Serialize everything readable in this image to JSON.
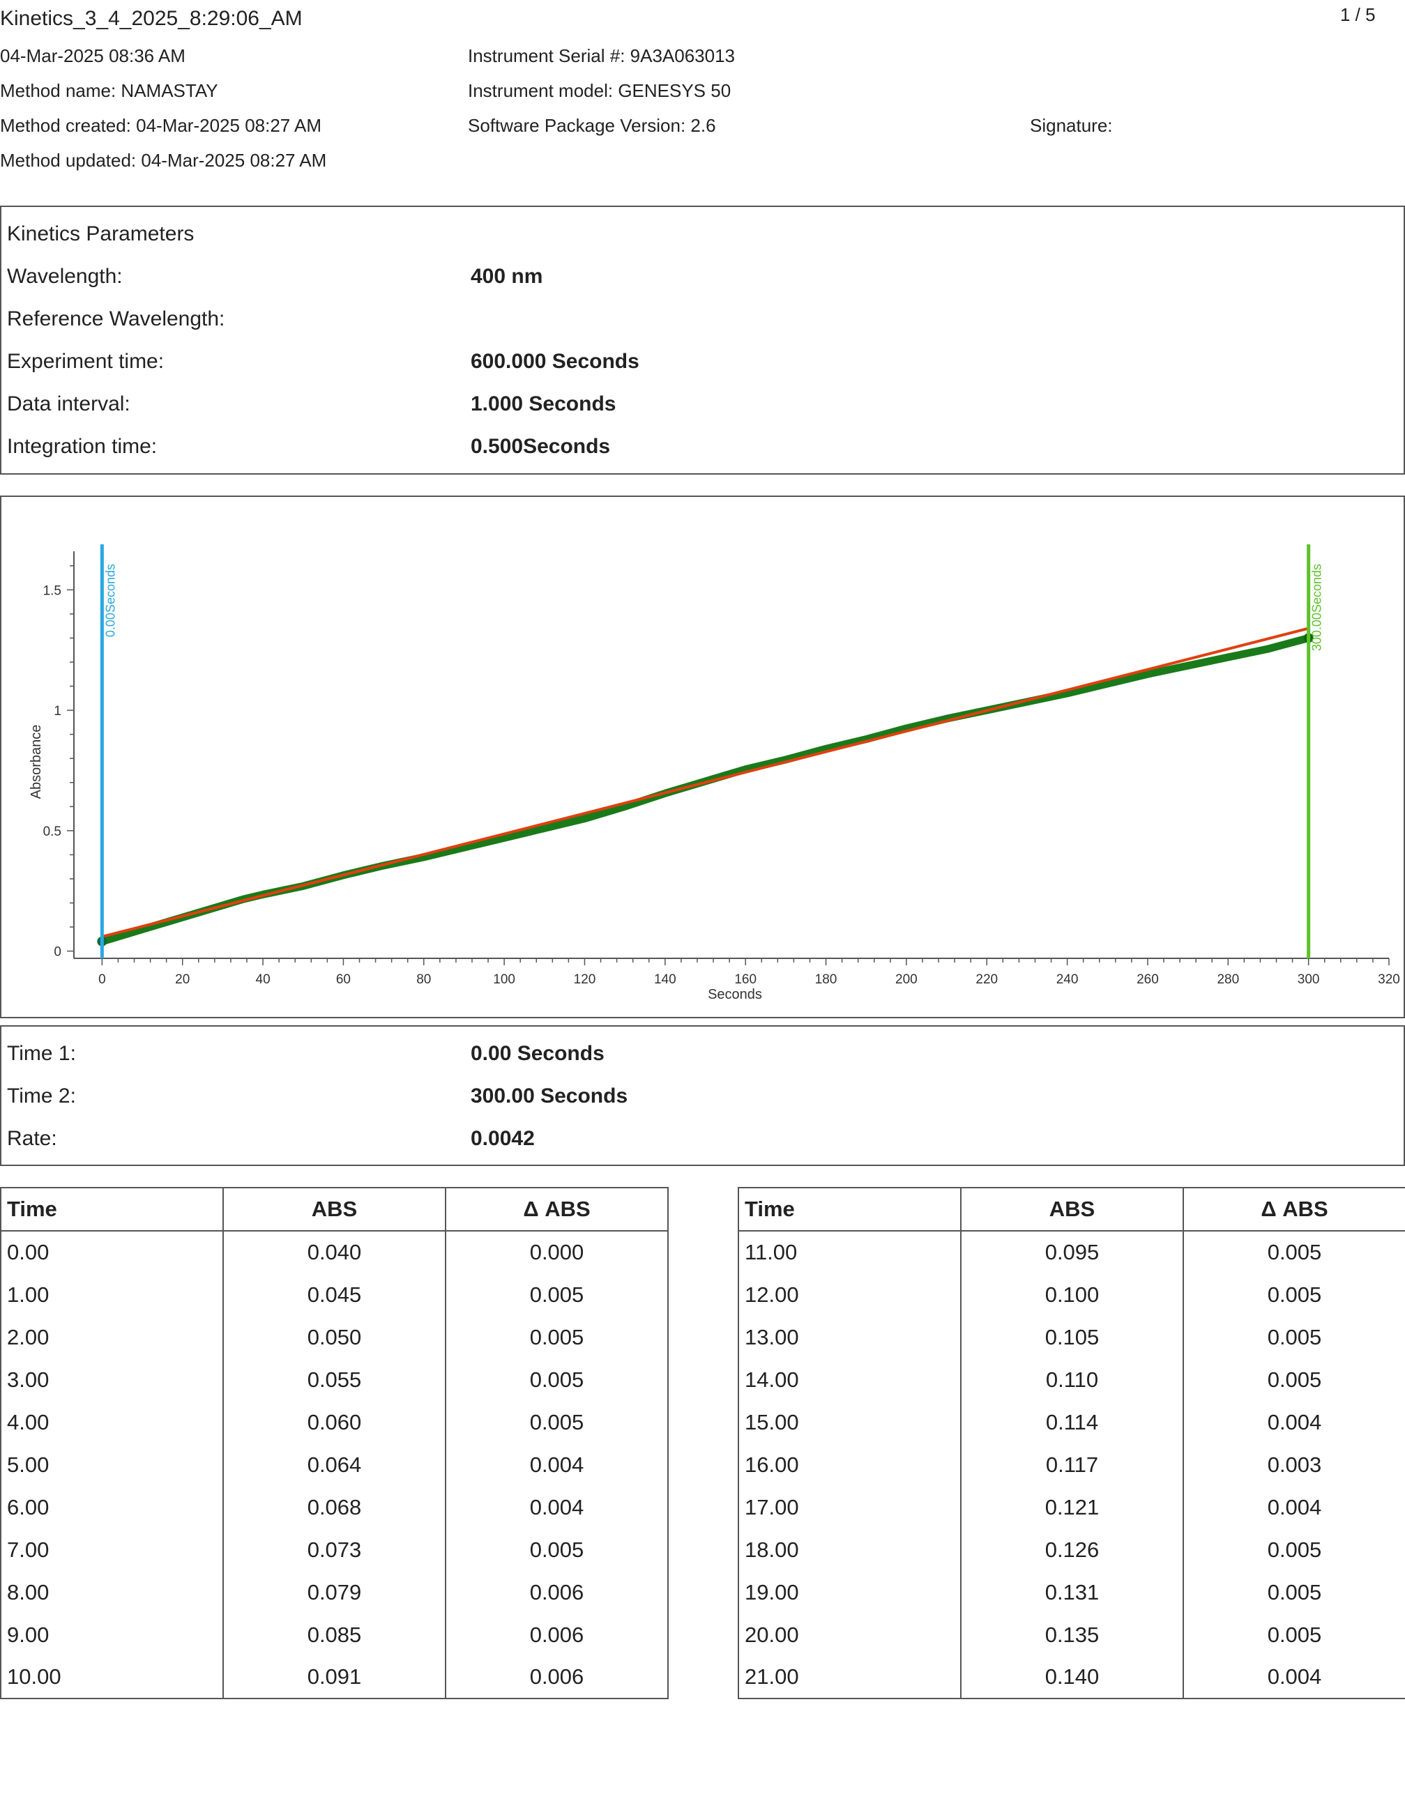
{
  "header": {
    "file_title": "Kinetics_3_4_2025_8:29:06_AM",
    "page_number": "1 / 5",
    "datetime": "04-Mar-2025 08:36 AM",
    "method_name": "Method name: NAMASTAY",
    "method_created": "Method created: 04-Mar-2025 08:27 AM",
    "method_updated": "Method updated: 04-Mar-2025 08:27 AM",
    "instrument_serial": "Instrument Serial #: 9A3A063013",
    "instrument_model": "Instrument model: GENESYS 50",
    "software_version": "Software Package Version: 2.6",
    "signature": "Signature:"
  },
  "kinetics": {
    "heading": "Kinetics Parameters",
    "rows": [
      {
        "label": "Wavelength:",
        "value": "400 nm"
      },
      {
        "label": "Reference Wavelength:",
        "value": ""
      },
      {
        "label": "Experiment time:",
        "value": "600.000 Seconds"
      },
      {
        "label": "Data interval:",
        "value": "1.000 Seconds"
      },
      {
        "label": "Integration time:",
        "value": "0.500Seconds"
      }
    ]
  },
  "results": {
    "rows": [
      {
        "label": "Time 1:",
        "value": "0.00 Seconds"
      },
      {
        "label": "Time 2:",
        "value": "300.00 Seconds"
      },
      {
        "label": "Rate:",
        "value": "0.0042"
      }
    ]
  },
  "chart_data": {
    "type": "line",
    "xlabel": "Seconds",
    "ylabel": "Absorbance",
    "xlim": [
      -7,
      320
    ],
    "ylim": [
      -0.03,
      1.66
    ],
    "x_ticks": [
      0,
      20,
      40,
      60,
      80,
      100,
      120,
      140,
      160,
      180,
      200,
      220,
      240,
      260,
      280,
      300,
      320
    ],
    "y_ticks": [
      0,
      0.5,
      1,
      1.5
    ],
    "grid": false,
    "series": [
      {
        "color": "#1a7a1a",
        "x": [
          0,
          10,
          20,
          30,
          35,
          40,
          50,
          60,
          70,
          80,
          90,
          100,
          110,
          120,
          130,
          140,
          150,
          160,
          170,
          180,
          190,
          200,
          210,
          220,
          230,
          240,
          250,
          260,
          270,
          280,
          290,
          300
        ],
        "y": [
          0.04,
          0.09,
          0.14,
          0.19,
          0.215,
          0.235,
          0.27,
          0.315,
          0.355,
          0.39,
          0.43,
          0.47,
          0.51,
          0.55,
          0.6,
          0.655,
          0.705,
          0.755,
          0.795,
          0.84,
          0.88,
          0.925,
          0.965,
          1.0,
          1.035,
          1.07,
          1.11,
          1.15,
          1.185,
          1.22,
          1.255,
          1.3
        ]
      },
      {
        "color": "#e04010",
        "x": [
          0,
          300
        ],
        "y": [
          0.06,
          1.34
        ]
      }
    ],
    "markers": [
      {
        "x": 0,
        "label": "0.00Seconds",
        "color": "#2aa8e0"
      },
      {
        "x": 300,
        "label": "300.00Seconds",
        "color": "#5cc22a"
      }
    ]
  },
  "tables": [
    {
      "headers": [
        "Time",
        "ABS",
        "Δ ABS"
      ],
      "rows": [
        [
          "0.00",
          "0.040",
          "0.000"
        ],
        [
          "1.00",
          "0.045",
          "0.005"
        ],
        [
          "2.00",
          "0.050",
          "0.005"
        ],
        [
          "3.00",
          "0.055",
          "0.005"
        ],
        [
          "4.00",
          "0.060",
          "0.005"
        ],
        [
          "5.00",
          "0.064",
          "0.004"
        ],
        [
          "6.00",
          "0.068",
          "0.004"
        ],
        [
          "7.00",
          "0.073",
          "0.005"
        ],
        [
          "8.00",
          "0.079",
          "0.006"
        ],
        [
          "9.00",
          "0.085",
          "0.006"
        ],
        [
          "10.00",
          "0.091",
          "0.006"
        ]
      ]
    },
    {
      "headers": [
        "Time",
        "ABS",
        "Δ ABS"
      ],
      "rows": [
        [
          "11.00",
          "0.095",
          "0.005"
        ],
        [
          "12.00",
          "0.100",
          "0.005"
        ],
        [
          "13.00",
          "0.105",
          "0.005"
        ],
        [
          "14.00",
          "0.110",
          "0.005"
        ],
        [
          "15.00",
          "0.114",
          "0.004"
        ],
        [
          "16.00",
          "0.117",
          "0.003"
        ],
        [
          "17.00",
          "0.121",
          "0.004"
        ],
        [
          "18.00",
          "0.126",
          "0.005"
        ],
        [
          "19.00",
          "0.131",
          "0.005"
        ],
        [
          "20.00",
          "0.135",
          "0.005"
        ],
        [
          "21.00",
          "0.140",
          "0.004"
        ]
      ]
    }
  ]
}
